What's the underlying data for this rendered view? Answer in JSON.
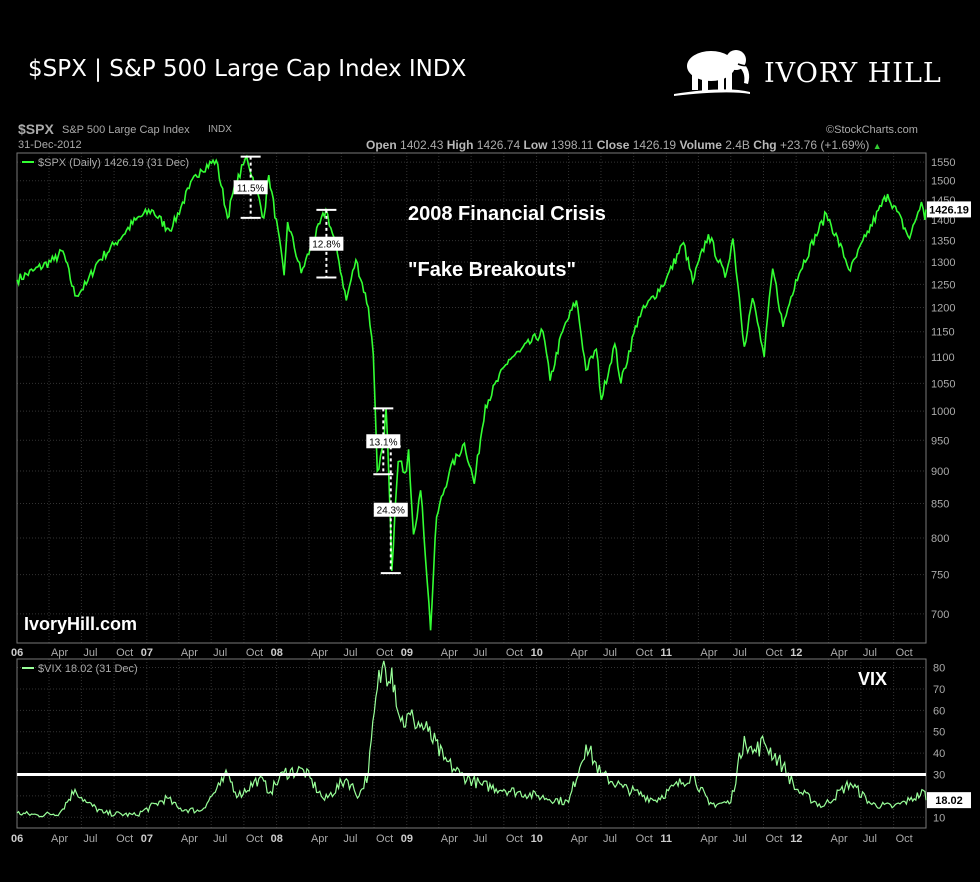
{
  "header": {
    "title": "$SPX | S&P 500 Large Cap Index INDX",
    "brand": "IVORY HILL",
    "brand_icon": "elephant-icon"
  },
  "chart_header": {
    "symbol": "$SPX",
    "name": "S&P 500 Large Cap Index",
    "exchange": "INDX",
    "date": "31-Dec-2012",
    "credit": "©StockCharts.com",
    "open_label": "Open",
    "open": "1402.43",
    "high_label": "High",
    "high": "1426.74",
    "low_label": "Low",
    "low": "1398.11",
    "close_label": "Close",
    "close": "1426.19",
    "volume_label": "Volume",
    "volume": "2.4B",
    "chg_label": "Chg",
    "chg": "+23.76 (+1.69%)",
    "chg_arrow": "▲"
  },
  "chart_data": [
    {
      "type": "line",
      "series": [
        {
          "name": "$SPX (Daily) 1426.19 (31 Dec)",
          "points": [
            [
              "2006-01-01",
              1260
            ],
            [
              "2006-02-15",
              1280
            ],
            [
              "2006-04-15",
              1305
            ],
            [
              "2006-05-10",
              1325
            ],
            [
              "2006-06-13",
              1225
            ],
            [
              "2006-07-15",
              1250
            ],
            [
              "2006-08-15",
              1300
            ],
            [
              "2006-10-01",
              1340
            ],
            [
              "2006-12-01",
              1400
            ],
            [
              "2007-01-15",
              1425
            ],
            [
              "2007-02-27",
              1380
            ],
            [
              "2007-03-15",
              1385
            ],
            [
              "2007-04-30",
              1480
            ],
            [
              "2007-06-01",
              1530
            ],
            [
              "2007-07-15",
              1555
            ],
            [
              "2007-08-16",
              1405
            ],
            [
              "2007-09-01",
              1470
            ],
            [
              "2007-10-09",
              1565
            ],
            [
              "2007-11-26",
              1405
            ],
            [
              "2007-12-10",
              1515
            ],
            [
              "2008-01-22",
              1270
            ],
            [
              "2008-02-01",
              1395
            ],
            [
              "2008-03-10",
              1275
            ],
            [
              "2008-05-19",
              1425
            ],
            [
              "2008-06-20",
              1320
            ],
            [
              "2008-07-15",
              1215
            ],
            [
              "2008-08-11",
              1305
            ],
            [
              "2008-09-15",
              1200
            ],
            [
              "2008-09-29",
              1105
            ],
            [
              "2008-10-10",
              900
            ],
            [
              "2008-10-28",
              940
            ],
            [
              "2008-11-04",
              1005
            ],
            [
              "2008-11-20",
              755
            ],
            [
              "2008-12-08",
              915
            ],
            [
              "2008-12-31",
              900
            ],
            [
              "2009-01-06",
              935
            ],
            [
              "2009-01-20",
              805
            ],
            [
              "2009-02-09",
              870
            ],
            [
              "2009-03-09",
              680
            ],
            [
              "2009-03-26",
              830
            ],
            [
              "2009-05-01",
              900
            ],
            [
              "2009-06-12",
              945
            ],
            [
              "2009-07-10",
              880
            ],
            [
              "2009-08-10",
              1010
            ],
            [
              "2009-10-15",
              1095
            ],
            [
              "2009-11-15",
              1110
            ],
            [
              "2010-01-19",
              1150
            ],
            [
              "2010-02-08",
              1055
            ],
            [
              "2010-03-15",
              1150
            ],
            [
              "2010-04-23",
              1215
            ],
            [
              "2010-05-20",
              1075
            ],
            [
              "2010-06-18",
              1115
            ],
            [
              "2010-07-02",
              1020
            ],
            [
              "2010-08-09",
              1125
            ],
            [
              "2010-08-26",
              1050
            ],
            [
              "2010-10-15",
              1180
            ],
            [
              "2010-12-31",
              1260
            ],
            [
              "2011-02-18",
              1345
            ],
            [
              "2011-03-16",
              1255
            ],
            [
              "2011-04-29",
              1365
            ],
            [
              "2011-06-15",
              1265
            ],
            [
              "2011-07-07",
              1355
            ],
            [
              "2011-08-08",
              1120
            ],
            [
              "2011-08-31",
              1220
            ],
            [
              "2011-10-03",
              1100
            ],
            [
              "2011-10-27",
              1285
            ],
            [
              "2011-11-25",
              1160
            ],
            [
              "2011-12-31",
              1260
            ],
            [
              "2012-03-26",
              1415
            ],
            [
              "2012-06-01",
              1280
            ],
            [
              "2012-07-15",
              1360
            ],
            [
              "2012-09-14",
              1465
            ],
            [
              "2012-11-15",
              1355
            ],
            [
              "2012-12-18",
              1445
            ],
            [
              "2012-12-28",
              1400
            ],
            [
              "2012-12-31",
              1426
            ]
          ]
        }
      ],
      "x_ticks": [
        {
          "date": "2006-01-01",
          "label": "06"
        },
        {
          "date": "2006-04-01",
          "label": "Apr"
        },
        {
          "date": "2006-07-01",
          "label": "Jul"
        },
        {
          "date": "2006-10-01",
          "label": "Oct"
        },
        {
          "date": "2007-01-01",
          "label": "07"
        },
        {
          "date": "2007-04-01",
          "label": "Apr"
        },
        {
          "date": "2007-07-01",
          "label": "Jul"
        },
        {
          "date": "2007-10-01",
          "label": "Oct"
        },
        {
          "date": "2008-01-01",
          "label": "08"
        },
        {
          "date": "2008-04-01",
          "label": "Apr"
        },
        {
          "date": "2008-07-01",
          "label": "Jul"
        },
        {
          "date": "2008-10-01",
          "label": "Oct"
        },
        {
          "date": "2009-01-01",
          "label": "09"
        },
        {
          "date": "2009-04-01",
          "label": "Apr"
        },
        {
          "date": "2009-07-01",
          "label": "Jul"
        },
        {
          "date": "2009-10-01",
          "label": "Oct"
        },
        {
          "date": "2010-01-01",
          "label": "10"
        },
        {
          "date": "2010-04-01",
          "label": "Apr"
        },
        {
          "date": "2010-07-01",
          "label": "Jul"
        },
        {
          "date": "2010-10-01",
          "label": "Oct"
        },
        {
          "date": "2011-01-01",
          "label": "11"
        },
        {
          "date": "2011-04-01",
          "label": "Apr"
        },
        {
          "date": "2011-07-01",
          "label": "Jul"
        },
        {
          "date": "2011-10-01",
          "label": "Oct"
        },
        {
          "date": "2012-01-01",
          "label": "12"
        },
        {
          "date": "2012-04-01",
          "label": "Apr"
        },
        {
          "date": "2012-07-01",
          "label": "Jul"
        },
        {
          "date": "2012-10-01",
          "label": "Oct"
        }
      ],
      "x_range": [
        "2006-01-01",
        "2012-12-31"
      ],
      "y_ticks": [
        700,
        750,
        800,
        850,
        900,
        950,
        1000,
        1050,
        1100,
        1150,
        1200,
        1250,
        1300,
        1350,
        1400,
        1450,
        1500,
        1550
      ],
      "ylim": [
        665,
        1575
      ],
      "y_scale": "log",
      "last_value": "1426.19",
      "grid": true,
      "annotations": [
        {
          "text": "2008 Financial Crisis"
        },
        {
          "text": "\"Fake Breakouts\""
        },
        {
          "text": "IvoryHill.com"
        }
      ],
      "ranges": [
        {
          "label": "11.5%",
          "date": "2007-10-20",
          "top": 1565,
          "bottom": 1405
        },
        {
          "label": "12.8%",
          "date": "2008-05-20",
          "top": 1425,
          "bottom": 1265
        },
        {
          "label": "13.1%",
          "date": "2008-10-27",
          "top": 1005,
          "bottom": 895
        },
        {
          "label": "24.3%",
          "date": "2008-11-17",
          "top": 940,
          "bottom": 752
        }
      ]
    },
    {
      "type": "line",
      "series": [
        {
          "name": "$VIX 18.02 (31 Dec)",
          "points": [
            [
              "2006-01-01",
              12
            ],
            [
              "2006-03-01",
              11
            ],
            [
              "2006-05-01",
              12
            ],
            [
              "2006-06-13",
              23
            ],
            [
              "2006-07-15",
              17
            ],
            [
              "2006-09-01",
              12
            ],
            [
              "2006-12-01",
              11
            ],
            [
              "2007-02-27",
              19
            ],
            [
              "2007-04-01",
              14
            ],
            [
              "2007-06-01",
              13
            ],
            [
              "2007-07-26",
              25
            ],
            [
              "2007-08-16",
              30
            ],
            [
              "2007-09-15",
              20
            ],
            [
              "2007-11-12",
              28
            ],
            [
              "2007-12-15",
              22
            ],
            [
              "2008-01-22",
              31
            ],
            [
              "2008-03-17",
              32
            ],
            [
              "2008-05-15",
              18
            ],
            [
              "2008-07-15",
              28
            ],
            [
              "2008-08-20",
              20
            ],
            [
              "2008-09-15",
              31
            ],
            [
              "2008-10-10",
              70
            ],
            [
              "2008-10-24",
              80
            ],
            [
              "2008-11-20",
              80
            ],
            [
              "2008-12-15",
              55
            ],
            [
              "2009-01-20",
              56
            ],
            [
              "2009-03-02",
              50
            ],
            [
              "2009-04-15",
              37
            ],
            [
              "2009-06-01",
              30
            ],
            [
              "2009-08-01",
              25
            ],
            [
              "2009-10-01",
              23
            ],
            [
              "2010-01-01",
              20
            ],
            [
              "2010-04-01",
              17
            ],
            [
              "2010-05-20",
              44
            ],
            [
              "2010-07-01",
              30
            ],
            [
              "2010-09-01",
              24
            ],
            [
              "2010-12-01",
              18
            ],
            [
              "2011-03-16",
              30
            ],
            [
              "2011-05-01",
              16
            ],
            [
              "2011-07-01",
              17
            ],
            [
              "2011-08-08",
              48
            ],
            [
              "2011-09-01",
              40
            ],
            [
              "2011-10-03",
              45
            ],
            [
              "2011-11-25",
              34
            ],
            [
              "2012-01-01",
              23
            ],
            [
              "2012-03-15",
              15
            ],
            [
              "2012-06-01",
              26
            ],
            [
              "2012-08-01",
              16
            ],
            [
              "2012-10-01",
              15
            ],
            [
              "2012-11-15",
              18
            ],
            [
              "2012-12-28",
              22
            ],
            [
              "2012-12-31",
              18
            ]
          ]
        }
      ],
      "y_ticks": [
        10,
        20,
        30,
        40,
        50,
        60,
        70,
        80
      ],
      "ylim": [
        5,
        84
      ],
      "threshold": 30,
      "last_value": "18.02",
      "panel_label": "VIX",
      "grid": true
    }
  ]
}
